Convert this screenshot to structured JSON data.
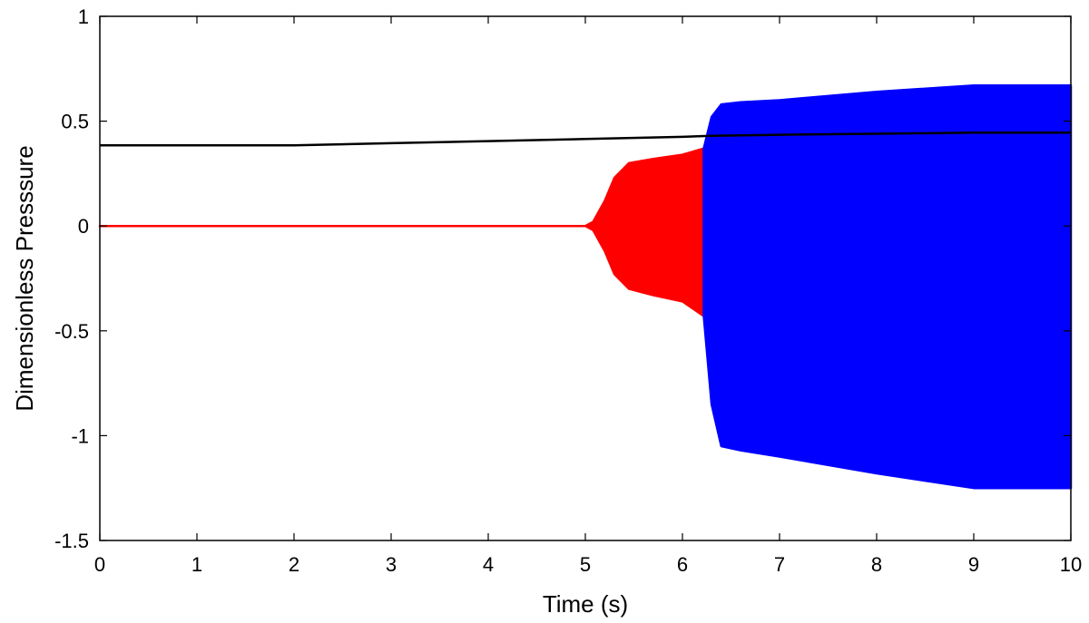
{
  "chart_data": {
    "type": "area",
    "xlabel": "Time (s)",
    "ylabel": "Dimensionless Presssure",
    "xlim": [
      0,
      10
    ],
    "ylim": [
      -1.5,
      1
    ],
    "xticks": [
      "0",
      "1",
      "2",
      "3",
      "4",
      "5",
      "6",
      "7",
      "8",
      "9",
      "10"
    ],
    "yticks": [
      "1",
      "0.5",
      "0",
      "-0.5",
      "-1",
      "-1.5"
    ],
    "grid": false,
    "series": [
      {
        "color": "#ff0000",
        "kind": "oscillation_envelope",
        "x": [
          0,
          5.0,
          5.08,
          5.2,
          5.3,
          5.45,
          5.7,
          6.0,
          6.22
        ],
        "upper": [
          0.0,
          0.0,
          0.02,
          0.12,
          0.23,
          0.3,
          0.32,
          0.34,
          0.37
        ],
        "lower": [
          0.0,
          0.0,
          -0.02,
          -0.12,
          -0.23,
          -0.3,
          -0.33,
          -0.36,
          -0.43
        ]
      },
      {
        "color": "#0000ff",
        "kind": "oscillation_envelope",
        "x": [
          6.22,
          6.3,
          6.4,
          6.6,
          7.0,
          8.0,
          9.0,
          10.0
        ],
        "upper": [
          0.37,
          0.52,
          0.58,
          0.59,
          0.6,
          0.64,
          0.67,
          0.67
        ],
        "lower": [
          -0.43,
          -0.85,
          -1.05,
          -1.07,
          -1.1,
          -1.18,
          -1.25,
          -1.25
        ]
      },
      {
        "color": "#000000",
        "kind": "line",
        "x": [
          0,
          2.0,
          3.0,
          4.0,
          5.0,
          6.0,
          6.3,
          7.0,
          8.0,
          9.0,
          10.0
        ],
        "y": [
          0.385,
          0.385,
          0.395,
          0.405,
          0.415,
          0.425,
          0.43,
          0.435,
          0.44,
          0.445,
          0.445
        ]
      }
    ]
  }
}
